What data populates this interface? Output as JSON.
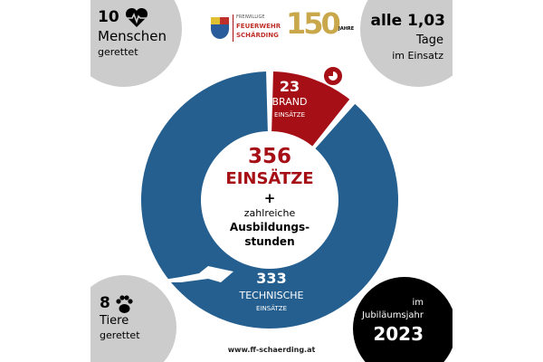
{
  "colors": {
    "blue": "#245f8f",
    "red": "#a50f15",
    "gray": "#cccccc",
    "black": "#000000",
    "gold": "#c9a84c"
  },
  "logo": {
    "line1": "FREIWILLIGE",
    "line2": "FEUERWEHR",
    "line3": "SCHÄRDING",
    "anniversary": "150",
    "jahre": "JAHRE"
  },
  "top_left": {
    "number": "10",
    "line1": "Menschen",
    "line2": "gerettet",
    "icon": "heart-pulse-icon"
  },
  "top_right": {
    "line1": "alle 1,03",
    "line2": "Tage",
    "line3": "im Einsatz"
  },
  "bottom_left": {
    "number": "8",
    "line1": "Tiere",
    "line2": "gerettet",
    "icon": "paw-icon"
  },
  "bottom_right": {
    "line1": "im",
    "line2": "Jubiläumsjahr",
    "year": "2023"
  },
  "center": {
    "total": "356",
    "total_label": "EINSÄTZE",
    "plus": "+",
    "line1": "zahlreiche",
    "line2": "Ausbildungs-",
    "line3": "stunden"
  },
  "footer": {
    "url": "www.ff-schaerding.at"
  },
  "chart_data": {
    "type": "pie",
    "donut": true,
    "categories": [
      "BRAND EINSÄTZE",
      "TECHNISCHE EINSÄTZE"
    ],
    "values": [
      23,
      333
    ],
    "colors": [
      "#a50f15",
      "#245f8f"
    ],
    "labels": [
      {
        "value": "23",
        "line1": "BRAND",
        "line2": "EINSÄTZE",
        "icon": "fire-icon"
      },
      {
        "value": "333",
        "line1": "TECHNISCHE",
        "line2": "EINSÄTZE",
        "icon": "hydraulic-spreader-icon"
      }
    ]
  }
}
